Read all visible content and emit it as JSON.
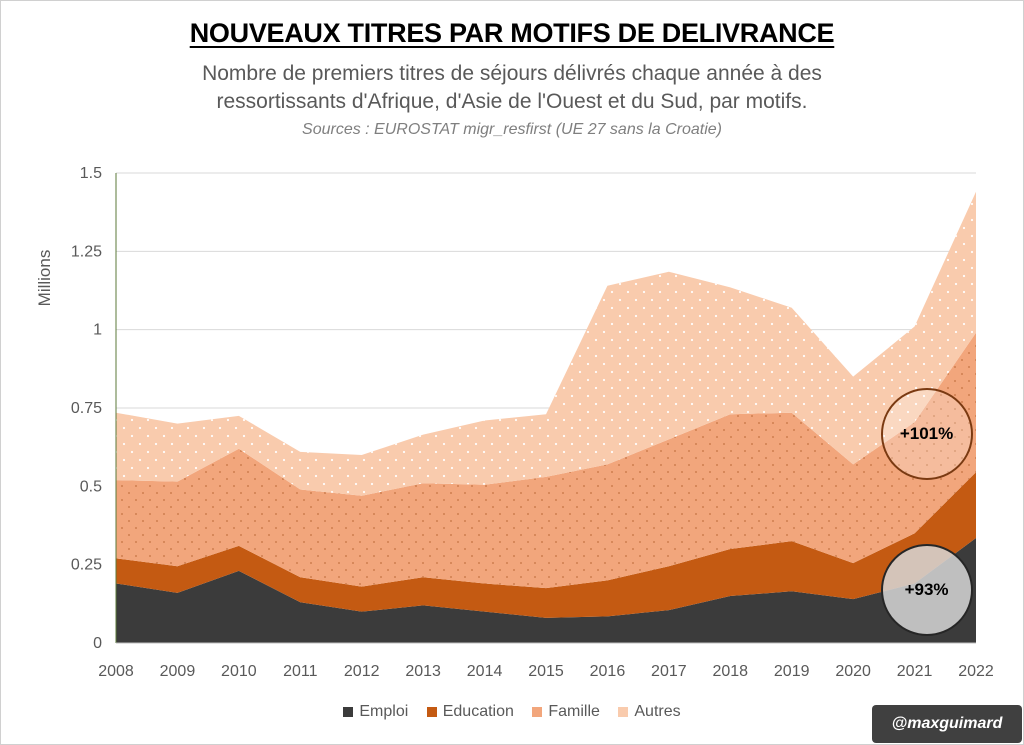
{
  "header": {
    "title": "NOUVEAUX TITRES PAR MOTIFS DE DELIVRANCE",
    "subtitle_line1": "Nombre de premiers titres de séjours délivrés chaque année à des",
    "subtitle_line2": "ressortissants d'Afrique, d'Asie de l'Ouest et du Sud, par motifs.",
    "source": "Sources : EUROSTAT migr_resfirst (UE 27 sans la Croatie)"
  },
  "chart_data": {
    "type": "area",
    "stacked": true,
    "ylabel": "Millions",
    "ylim": [
      0,
      1.5
    ],
    "yticks": [
      "0",
      "0.25",
      "0.5",
      "0.75",
      "1",
      "1.25",
      "1.5"
    ],
    "yticks_values": [
      0,
      0.25,
      0.5,
      0.75,
      1,
      1.25,
      1.5
    ],
    "x": [
      "2008",
      "2009",
      "2010",
      "2011",
      "2012",
      "2013",
      "2014",
      "2015",
      "2016",
      "2017",
      "2018",
      "2019",
      "2020",
      "2021",
      "2022"
    ],
    "legend_position": "bottom",
    "grid": true,
    "series": [
      {
        "name": "Emploi",
        "color": "#3b3b3b",
        "values": [
          0.19,
          0.16,
          0.23,
          0.13,
          0.1,
          0.12,
          0.1,
          0.08,
          0.085,
          0.105,
          0.15,
          0.165,
          0.14,
          0.19,
          0.335
        ]
      },
      {
        "name": "Education",
        "color": "#c45a12",
        "values": [
          0.08,
          0.085,
          0.08,
          0.08,
          0.08,
          0.09,
          0.09,
          0.095,
          0.115,
          0.14,
          0.15,
          0.16,
          0.115,
          0.16,
          0.21
        ]
      },
      {
        "name": "Famille",
        "color": "#f2a67c",
        "values": [
          0.25,
          0.27,
          0.31,
          0.28,
          0.29,
          0.3,
          0.315,
          0.355,
          0.37,
          0.405,
          0.43,
          0.41,
          0.315,
          0.355,
          0.445
        ]
      },
      {
        "name": "Autres",
        "color": "#f9cbad",
        "values": [
          0.215,
          0.185,
          0.105,
          0.12,
          0.13,
          0.155,
          0.205,
          0.2,
          0.57,
          0.535,
          0.405,
          0.335,
          0.28,
          0.305,
          0.45
        ]
      }
    ],
    "annotations": [
      {
        "text": "+101%"
      },
      {
        "text": "+93%"
      }
    ]
  },
  "credit": "@maxguimard"
}
